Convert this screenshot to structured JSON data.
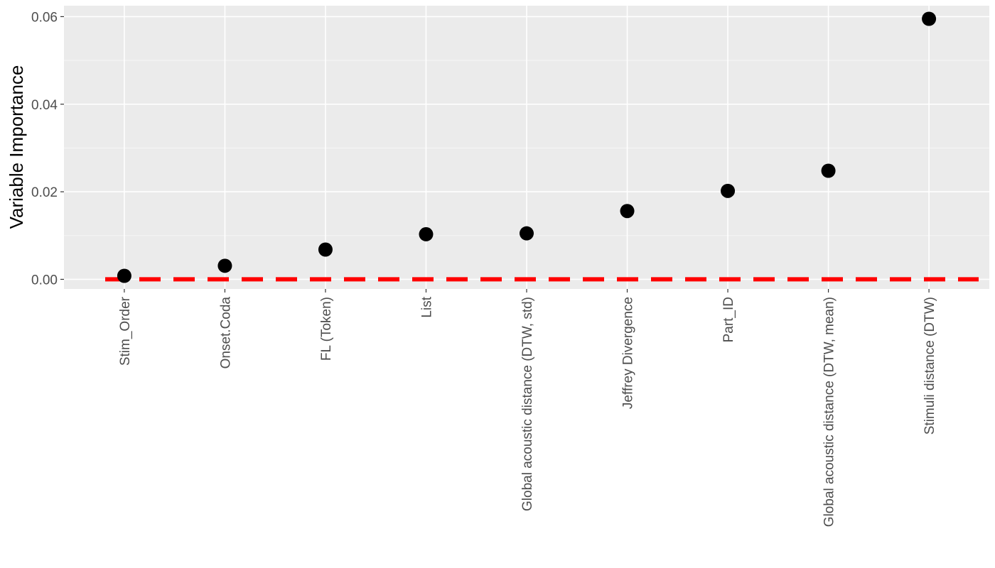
{
  "chart_data": {
    "type": "scatter",
    "title": "",
    "xlabel": "",
    "ylabel": "Variable Importance",
    "categories": [
      "Stim_Order",
      "Onset.Coda",
      "FL (Token)",
      "List",
      "Global acoustic distance (DTW, std)",
      "Jeffrey Divergence",
      "Part_ID",
      "Global acoustic distance (DTW, mean)",
      "Stimuli distance (DTW)"
    ],
    "values": [
      0.0008,
      0.0031,
      0.0068,
      0.0103,
      0.0105,
      0.0156,
      0.0202,
      0.0248,
      0.0595
    ],
    "ylim": [
      -0.0022,
      0.0625
    ],
    "yticks": [
      0.0,
      0.02,
      0.04,
      0.06
    ],
    "ytick_labels": [
      "0.00",
      "0.02",
      "0.04",
      "0.06"
    ],
    "reference_line": {
      "y": 0,
      "style": "dashed",
      "color": "#ff0000"
    },
    "point_color": "#000000",
    "panel_background": "#ebebeb",
    "grid": true,
    "legend": "none"
  }
}
